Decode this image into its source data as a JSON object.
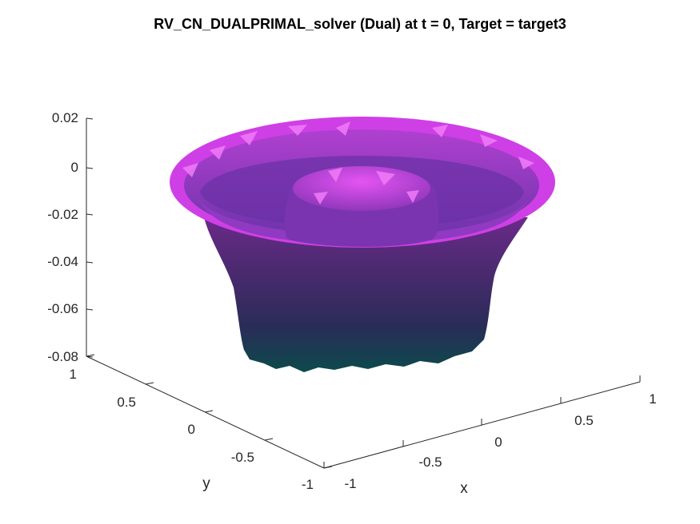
{
  "chart_data": {
    "type": "surface",
    "title": "RV_CN_DUALPRIMAL_solver (Dual) at t = 0, Target = target3",
    "xlabel": "x",
    "ylabel": "y",
    "zlabel": "",
    "xlim": [
      -1,
      1
    ],
    "ylim": [
      -1,
      1
    ],
    "zlim": [
      -0.08,
      0.02
    ],
    "xticks": [
      -1,
      -0.5,
      0,
      0.5,
      1
    ],
    "xtick_labels": [
      "-1",
      "-0.5",
      "0",
      "0.5",
      "1"
    ],
    "yticks": [
      -1,
      -0.5,
      0,
      0.5,
      1
    ],
    "ytick_labels": [
      "-1",
      "-0.5",
      "0",
      "0.5",
      "1"
    ],
    "zticks": [
      -0.08,
      -0.06,
      -0.04,
      -0.02,
      0,
      0.02
    ],
    "ztick_labels": [
      "-0.08",
      "-0.06",
      "-0.04",
      "-0.02",
      "0",
      "0.02"
    ],
    "grid": false,
    "colormap": [
      "#0b4a4a",
      "#2d2a5a",
      "#5a2a7a",
      "#9b2fb8",
      "#e040f0"
    ],
    "surface": {
      "domain": "disk",
      "outer_radius": 1.0,
      "outer_rim_z": 0.0,
      "wall_bottom_z": -0.08,
      "inner_surface_z": -0.005,
      "central_bump_radius": 0.35,
      "central_bump_top_z": 0.0,
      "trough_z": -0.03
    }
  }
}
